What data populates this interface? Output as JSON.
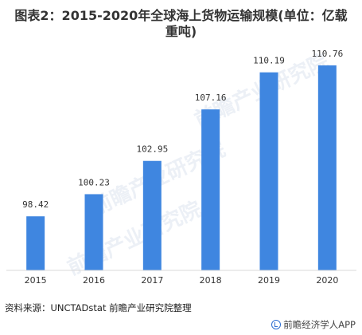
{
  "chart_data": {
    "type": "bar",
    "title": "图表2：2015-2020年全球海上货物运输规模(单位：亿载重吨)",
    "categories": [
      "2015",
      "2016",
      "2017",
      "2018",
      "2019",
      "2020"
    ],
    "values": [
      98.42,
      100.23,
      102.95,
      107.16,
      110.19,
      110.76
    ],
    "value_labels": [
      "98.42",
      "100.23",
      "102.95",
      "107.16",
      "110.19",
      "110.76"
    ],
    "ylim": [
      94,
      111.8
    ],
    "bar_color": "#3f86e0",
    "grid": false,
    "legend": "none"
  },
  "title_lines": [
    "图表2：2015-2020年全球海上货物运输规模(单位：亿载",
    "重吨)"
  ],
  "source": "资料来源：UNCTADstat 前瞻产业研究院整理",
  "brand": {
    "icon": "qianzhan-logo-icon",
    "label": "前瞻经济学人APP"
  },
  "watermarks": [
    "前瞻产业研究院",
    "前瞻产业研究院",
    "前瞻产业研究院"
  ]
}
